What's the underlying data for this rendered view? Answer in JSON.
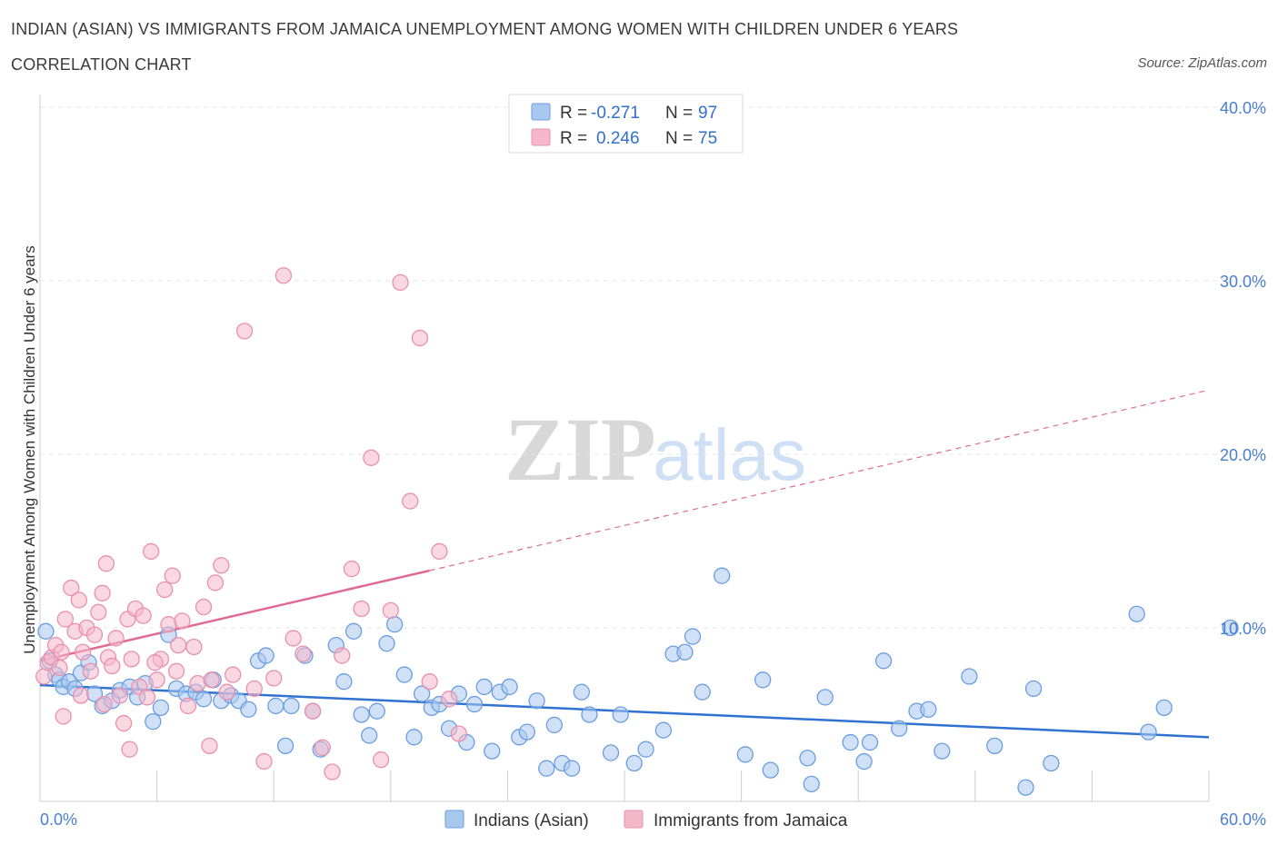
{
  "title": "INDIAN (ASIAN) VS IMMIGRANTS FROM JAMAICA UNEMPLOYMENT AMONG WOMEN WITH CHILDREN UNDER 6 YEARS",
  "subtitle": "CORRELATION CHART",
  "source": "Source: ZipAtlas.com",
  "watermark": {
    "zip": "ZIP",
    "atlas": "atlas"
  },
  "colors": {
    "blue_fill": "#a9c8f0",
    "blue_stroke": "#6a9ee0",
    "blue_line": "#2f72d0",
    "pink_fill": "#f5b8cb",
    "pink_stroke": "#e890ad",
    "pink_line": "#e06a95",
    "axis_label": "#4a7fd0"
  },
  "legend": {
    "rows": [
      {
        "r_label": "R =",
        "r_value": "-0.271",
        "n_label": "N =",
        "n_value": "97"
      },
      {
        "r_label": "R =",
        "r_value": "0.246",
        "n_label": "N =",
        "n_value": "75"
      }
    ]
  },
  "bottom_legend": [
    "Indians (Asian)",
    "Immigrants from Jamaica"
  ],
  "chart_data": {
    "type": "scatter",
    "title": "INDIAN (ASIAN) VS IMMIGRANTS FROM JAMAICA UNEMPLOYMENT AMONG WOMEN WITH CHILDREN UNDER 6 YEARS",
    "xlabel": "",
    "ylabel": "Unemployment Among Women with Children Under 6 years",
    "xlim": [
      0,
      60
    ],
    "ylim": [
      0,
      40
    ],
    "x_tick_labels": [
      "0.0%",
      "60.0%"
    ],
    "y_ticks": [
      10,
      20,
      30,
      40
    ],
    "y_tick_labels": [
      "10.0%",
      "20.0%",
      "30.0%",
      "40.0%"
    ],
    "grid": true,
    "legend_position": "top-center",
    "series": [
      {
        "name": "Indians (Asian)",
        "r": -0.271,
        "n": 97,
        "trend": {
          "x": [
            0,
            60
          ],
          "y": [
            6.7,
            3.7
          ],
          "style": "solid"
        },
        "points": [
          [
            0.3,
            9.8
          ],
          [
            0.5,
            8.1
          ],
          [
            0.8,
            7.3
          ],
          [
            1.0,
            7.0
          ],
          [
            1.2,
            6.6
          ],
          [
            1.5,
            6.9
          ],
          [
            1.8,
            6.5
          ],
          [
            2.1,
            7.4
          ],
          [
            2.5,
            8.0
          ],
          [
            2.8,
            6.2
          ],
          [
            3.2,
            5.5
          ],
          [
            3.7,
            5.8
          ],
          [
            4.1,
            6.4
          ],
          [
            4.6,
            6.6
          ],
          [
            5.0,
            6.0
          ],
          [
            5.4,
            6.8
          ],
          [
            5.8,
            4.6
          ],
          [
            6.2,
            5.4
          ],
          [
            6.6,
            9.6
          ],
          [
            7.0,
            6.5
          ],
          [
            7.5,
            6.2
          ],
          [
            8.0,
            6.3
          ],
          [
            8.4,
            5.9
          ],
          [
            8.9,
            7.0
          ],
          [
            9.3,
            5.8
          ],
          [
            9.8,
            6.1
          ],
          [
            10.2,
            5.8
          ],
          [
            10.7,
            5.3
          ],
          [
            11.2,
            8.1
          ],
          [
            11.6,
            8.4
          ],
          [
            12.1,
            5.5
          ],
          [
            12.6,
            3.2
          ],
          [
            12.9,
            5.5
          ],
          [
            13.6,
            8.4
          ],
          [
            14.0,
            5.2
          ],
          [
            14.4,
            3.0
          ],
          [
            15.2,
            9.0
          ],
          [
            15.6,
            6.9
          ],
          [
            16.1,
            9.8
          ],
          [
            16.5,
            5.0
          ],
          [
            16.9,
            3.8
          ],
          [
            17.3,
            5.2
          ],
          [
            17.8,
            9.1
          ],
          [
            18.2,
            10.2
          ],
          [
            18.7,
            7.3
          ],
          [
            19.2,
            3.7
          ],
          [
            19.6,
            6.2
          ],
          [
            20.1,
            5.4
          ],
          [
            20.5,
            5.6
          ],
          [
            21.0,
            4.2
          ],
          [
            21.5,
            6.2
          ],
          [
            21.9,
            3.4
          ],
          [
            22.3,
            5.6
          ],
          [
            22.8,
            6.6
          ],
          [
            23.2,
            2.9
          ],
          [
            23.6,
            6.3
          ],
          [
            24.1,
            6.6
          ],
          [
            24.6,
            3.7
          ],
          [
            25.0,
            4.0
          ],
          [
            25.5,
            5.8
          ],
          [
            26.0,
            1.9
          ],
          [
            26.4,
            4.4
          ],
          [
            26.8,
            2.2
          ],
          [
            27.3,
            1.9
          ],
          [
            27.8,
            6.3
          ],
          [
            28.2,
            5.0
          ],
          [
            29.3,
            2.8
          ],
          [
            29.8,
            5.0
          ],
          [
            30.5,
            2.2
          ],
          [
            31.1,
            3.0
          ],
          [
            32.0,
            4.1
          ],
          [
            32.5,
            8.5
          ],
          [
            33.1,
            8.6
          ],
          [
            33.5,
            9.5
          ],
          [
            34.0,
            6.3
          ],
          [
            35.0,
            13.0
          ],
          [
            36.2,
            2.7
          ],
          [
            37.1,
            7.0
          ],
          [
            37.5,
            1.8
          ],
          [
            39.4,
            2.5
          ],
          [
            39.6,
            1.0
          ],
          [
            40.3,
            6.0
          ],
          [
            41.6,
            3.4
          ],
          [
            42.3,
            2.3
          ],
          [
            42.6,
            3.4
          ],
          [
            43.3,
            8.1
          ],
          [
            44.1,
            4.2
          ],
          [
            45.0,
            5.2
          ],
          [
            45.6,
            5.3
          ],
          [
            46.3,
            2.9
          ],
          [
            47.7,
            7.2
          ],
          [
            49.0,
            3.2
          ],
          [
            50.6,
            0.8
          ],
          [
            51.0,
            6.5
          ],
          [
            51.9,
            2.2
          ],
          [
            56.3,
            10.8
          ],
          [
            56.9,
            4.0
          ],
          [
            57.7,
            5.4
          ],
          [
            61.1,
            10.0
          ]
        ]
      },
      {
        "name": "Immigrants from Jamaica",
        "r": 0.246,
        "n": 75,
        "trend": {
          "x": [
            0,
            20
          ],
          "y": [
            8.1,
            13.3
          ],
          "style": "solid",
          "dashed_extension_to": [
            60,
            23.7
          ]
        },
        "points": [
          [
            0.2,
            7.2
          ],
          [
            0.4,
            8.0
          ],
          [
            0.6,
            8.3
          ],
          [
            0.8,
            9.0
          ],
          [
            1.0,
            7.7
          ],
          [
            1.1,
            8.6
          ],
          [
            1.3,
            10.5
          ],
          [
            1.6,
            12.3
          ],
          [
            1.8,
            9.8
          ],
          [
            2.0,
            11.6
          ],
          [
            2.2,
            8.6
          ],
          [
            2.4,
            10.0
          ],
          [
            2.6,
            7.5
          ],
          [
            2.8,
            9.6
          ],
          [
            3.0,
            10.9
          ],
          [
            3.2,
            12.0
          ],
          [
            3.4,
            13.7
          ],
          [
            3.5,
            8.3
          ],
          [
            3.7,
            7.8
          ],
          [
            3.9,
            9.4
          ],
          [
            4.1,
            6.1
          ],
          [
            4.3,
            4.5
          ],
          [
            4.5,
            10.5
          ],
          [
            4.7,
            8.2
          ],
          [
            4.9,
            11.1
          ],
          [
            5.1,
            6.6
          ],
          [
            5.3,
            10.7
          ],
          [
            5.5,
            6.0
          ],
          [
            5.7,
            14.4
          ],
          [
            6.0,
            7.0
          ],
          [
            6.2,
            8.2
          ],
          [
            6.4,
            12.2
          ],
          [
            6.6,
            10.2
          ],
          [
            6.8,
            13.0
          ],
          [
            7.0,
            7.5
          ],
          [
            7.3,
            10.4
          ],
          [
            7.6,
            5.5
          ],
          [
            7.9,
            8.9
          ],
          [
            8.1,
            6.8
          ],
          [
            8.4,
            11.2
          ],
          [
            8.7,
            3.2
          ],
          [
            9.0,
            12.6
          ],
          [
            9.3,
            13.6
          ],
          [
            9.6,
            6.3
          ],
          [
            9.9,
            7.3
          ],
          [
            10.5,
            27.1
          ],
          [
            11.0,
            6.5
          ],
          [
            11.5,
            2.3
          ],
          [
            12.0,
            7.1
          ],
          [
            12.5,
            30.3
          ],
          [
            13.0,
            9.4
          ],
          [
            13.5,
            8.5
          ],
          [
            14.0,
            5.2
          ],
          [
            14.5,
            3.1
          ],
          [
            15.0,
            1.7
          ],
          [
            15.5,
            8.4
          ],
          [
            16.0,
            13.4
          ],
          [
            16.5,
            11.1
          ],
          [
            17.0,
            19.8
          ],
          [
            17.5,
            2.4
          ],
          [
            18.0,
            11.0
          ],
          [
            18.5,
            29.9
          ],
          [
            19.0,
            17.3
          ],
          [
            19.5,
            26.7
          ],
          [
            20.0,
            6.9
          ],
          [
            20.5,
            14.4
          ],
          [
            21.0,
            5.9
          ],
          [
            21.5,
            3.9
          ],
          [
            1.2,
            4.9
          ],
          [
            2.1,
            6.1
          ],
          [
            3.3,
            5.6
          ],
          [
            4.6,
            3.0
          ],
          [
            5.9,
            8.0
          ],
          [
            7.1,
            9.0
          ],
          [
            8.8,
            7.0
          ]
        ]
      }
    ]
  }
}
